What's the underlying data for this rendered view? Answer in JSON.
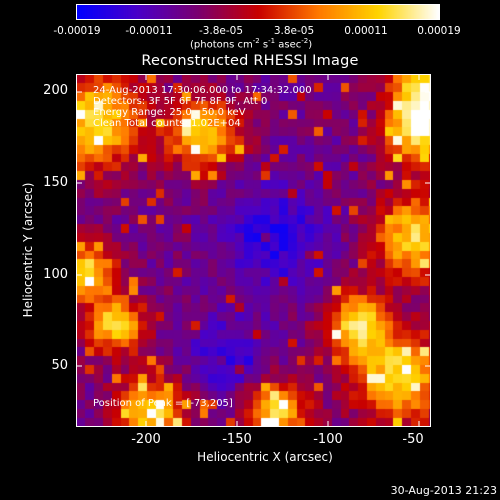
{
  "colorbar": {
    "ticks": [
      "-0.00019",
      "-0.00011",
      "-3.8e-05",
      "3.8e-05",
      "0.00011",
      "0.00019"
    ],
    "units_prefix": "(photons cm",
    "units_sup1": "-2",
    "units_mid1": " s",
    "units_sup2": "-1",
    "units_mid2": " asec",
    "units_sup3": "-2",
    "units_suffix": ")",
    "colors": [
      "#0000ff",
      "#4a00c8",
      "#7a0070",
      "#c80000",
      "#ff7800",
      "#ffd400",
      "#ffffff"
    ]
  },
  "title": "Reconstructed RHESSI Image",
  "info": {
    "line1": "24-Aug-2013 17:30:06.000 to 17:34:32.000",
    "line2": "Detectors: 3F 5F 6F 7F 8F 9F, Att 0",
    "line3": "Energy Range: 25.0 - 50.0 keV",
    "line4": "Clean    Total counts: 1.02E+04",
    "peak": "Position of Peak = [-73,205]"
  },
  "axes": {
    "xlabel": "Heliocentric X (arcsec)",
    "ylabel": "Heliocentric Y (arcsec)",
    "xticks": [
      "-200",
      "-150",
      "-100",
      "-50"
    ],
    "yticks": [
      "200",
      "150",
      "100",
      "50"
    ]
  },
  "timestamp": "30-Aug-2013 21:23"
}
